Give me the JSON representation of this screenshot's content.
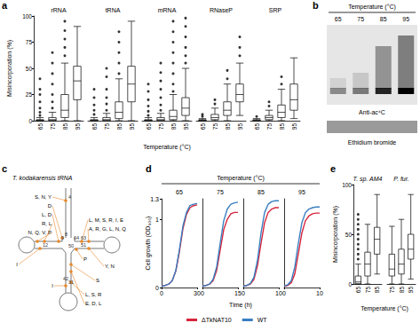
{
  "chart_data": [
    {
      "label": "a",
      "type": "boxplot",
      "y_label": "Misincorporation (%)",
      "x_label": "Temperature (°C)",
      "ylim": [
        0,
        100
      ],
      "yticks": [
        0,
        25,
        50,
        75,
        100
      ],
      "groups": [
        {
          "name": "rRNA",
          "categories": [
            "65",
            "75",
            "85",
            "95"
          ],
          "boxes": [
            [
              0,
              0,
              0,
              1,
              3
            ],
            [
              0,
              0,
              1,
              3,
              8
            ],
            [
              0,
              3,
              10,
              25,
              55
            ],
            [
              0,
              20,
              38,
              52,
              90
            ]
          ],
          "outliers": [
            [
              5,
              8,
              12,
              18,
              25,
              30,
              40
            ],
            [
              12,
              18,
              25,
              35,
              45,
              55,
              65
            ],
            [
              62,
              70,
              78,
              86,
              95
            ],
            []
          ]
        },
        {
          "name": "tRNA",
          "categories": [
            "65",
            "75",
            "85",
            "95"
          ],
          "boxes": [
            [
              0,
              0,
              0,
              1,
              3
            ],
            [
              0,
              0,
              1,
              3,
              7
            ],
            [
              0,
              2,
              8,
              18,
              40
            ],
            [
              0,
              18,
              35,
              52,
              95
            ]
          ],
          "outliers": [
            [
              6,
              10,
              15,
              22,
              30
            ],
            [
              10,
              16,
              22,
              30,
              42,
              50
            ],
            [
              45,
              55,
              65,
              75,
              85
            ],
            []
          ]
        },
        {
          "name": "mRNA",
          "categories": [
            "65",
            "75",
            "85",
            "95"
          ],
          "boxes": [
            [
              0,
              0,
              0,
              1,
              3
            ],
            [
              0,
              0,
              1,
              3,
              7
            ],
            [
              0,
              1,
              4,
              10,
              25
            ],
            [
              0,
              5,
              12,
              22,
              50
            ]
          ],
          "outliers": [
            [
              5,
              9,
              14,
              20,
              28,
              35
            ],
            [
              10,
              15,
              22,
              30,
              38,
              46,
              55
            ],
            [
              28,
              35,
              45,
              55,
              65,
              75,
              85,
              95
            ],
            [
              55,
              62,
              70,
              80,
              90,
              98
            ]
          ]
        },
        {
          "name": "RNaseP",
          "categories": [
            "65",
            "75",
            "85",
            "95"
          ],
          "boxes": [
            [
              0,
              0,
              0,
              1,
              2
            ],
            [
              0,
              1,
              3,
              6,
              12
            ],
            [
              0,
              5,
              10,
              18,
              35
            ],
            [
              5,
              18,
              25,
              35,
              55
            ]
          ],
          "outliers": [
            [
              4,
              6
            ],
            [
              16,
              20
            ],
            [
              40,
              48
            ],
            [
              62,
              70,
              80
            ]
          ]
        },
        {
          "name": "SRP",
          "categories": [
            "65",
            "75",
            "85",
            "95"
          ],
          "boxes": [
            [
              0,
              0,
              0,
              1,
              2
            ],
            [
              0,
              1,
              3,
              5,
              10
            ],
            [
              0,
              3,
              8,
              15,
              30
            ],
            [
              2,
              10,
              20,
              35,
              60
            ]
          ],
          "outliers": [
            [
              4
            ],
            [
              14,
              18
            ],
            [
              35,
              42
            ],
            []
          ]
        }
      ]
    },
    {
      "label": "d",
      "type": "line",
      "title": "Temperature (°C)",
      "y_label": "Cell growth (OD₆₀₀)",
      "x_label": "Time (h)",
      "ylim": [
        0,
        1.3
      ],
      "yticks": [
        0,
        1
      ],
      "legend": "bottom",
      "panels": [
        {
          "name": "65",
          "xlim": [
            0,
            30
          ],
          "xticks": [
            0,
            30
          ],
          "x": [
            0,
            3,
            6,
            9,
            12,
            15,
            18,
            21,
            24,
            27,
            30
          ],
          "series": [
            {
              "name": "ΔTkNAT10",
              "color": "#d7263d",
              "values": [
                0.02,
                0.03,
                0.05,
                0.1,
                0.24,
                0.52,
                0.86,
                1.07,
                1.17,
                1.2,
                1.21
              ]
            },
            {
              "name": "WT",
              "color": "#3a7fc1",
              "values": [
                0.02,
                0.03,
                0.05,
                0.1,
                0.25,
                0.55,
                0.9,
                1.1,
                1.2,
                1.22,
                1.23
              ]
            }
          ]
        },
        {
          "name": "75",
          "xlim": [
            0,
            15
          ],
          "xticks": [
            0,
            15
          ],
          "x": [
            0,
            1.5,
            3,
            4.5,
            6,
            7.5,
            9,
            10.5,
            12,
            13.5,
            15
          ],
          "series": [
            {
              "name": "ΔTkNAT10",
              "color": "#d7263d",
              "values": [
                0.02,
                0.03,
                0.05,
                0.1,
                0.25,
                0.55,
                0.85,
                1.0,
                1.08,
                1.1,
                1.1
              ]
            },
            {
              "name": "WT",
              "color": "#3a7fc1",
              "values": [
                0.02,
                0.03,
                0.05,
                0.12,
                0.3,
                0.65,
                0.98,
                1.15,
                1.22,
                1.24,
                1.25
              ]
            }
          ]
        },
        {
          "name": "85",
          "xlim": [
            0,
            10
          ],
          "xticks": [
            0,
            10
          ],
          "x": [
            0,
            1,
            2,
            3,
            4,
            5,
            6,
            7,
            8,
            9,
            10
          ],
          "series": [
            {
              "name": "ΔTkNAT10",
              "color": "#d7263d",
              "values": [
                0.02,
                0.03,
                0.05,
                0.12,
                0.32,
                0.65,
                0.95,
                1.1,
                1.15,
                1.17,
                1.17
              ]
            },
            {
              "name": "WT",
              "color": "#3a7fc1",
              "values": [
                0.02,
                0.03,
                0.06,
                0.15,
                0.4,
                0.8,
                1.1,
                1.22,
                1.26,
                1.27,
                1.27
              ]
            }
          ]
        },
        {
          "name": "95",
          "xlim": [
            0,
            10
          ],
          "xticks": [
            0,
            10
          ],
          "x": [
            0,
            1,
            2,
            3,
            4,
            5,
            6,
            7,
            8,
            9,
            10
          ],
          "series": [
            {
              "name": "ΔTkNAT10",
              "color": "#d7263d",
              "values": [
                0.02,
                0.03,
                0.07,
                0.2,
                0.5,
                0.8,
                0.98,
                1.05,
                1.08,
                1.09,
                1.09
              ]
            },
            {
              "name": "WT",
              "color": "#3a7fc1",
              "values": [
                0.02,
                0.04,
                0.1,
                0.3,
                0.65,
                0.95,
                1.1,
                1.15,
                1.17,
                1.18,
                1.18
              ]
            }
          ]
        }
      ]
    },
    {
      "label": "e",
      "type": "boxplot",
      "y_label": "Misincorporation (%)",
      "x_label": "Temperature (°C)",
      "ylim": [
        0,
        100
      ],
      "yticks": [
        0,
        50,
        100
      ],
      "groups": [
        {
          "name": "T. sp. AM4",
          "categories": [
            "65",
            "75",
            "85"
          ],
          "boxes": [
            [
              0,
              0,
              2,
              8,
              20
            ],
            [
              0,
              8,
              20,
              32,
              60
            ],
            [
              10,
              30,
              45,
              57,
              90
            ]
          ],
          "outliers": [
            [
              25,
              30,
              35,
              40,
              45,
              50,
              55,
              60,
              65,
              70
            ],
            [],
            []
          ]
        },
        {
          "name": "P. fur.",
          "categories": [
            "75",
            "85",
            "95"
          ],
          "boxes": [
            [
              0,
              8,
              15,
              30,
              58
            ],
            [
              0,
              10,
              20,
              35,
              65
            ],
            [
              5,
              25,
              35,
              50,
              90
            ]
          ],
          "outliers": [
            [],
            [],
            []
          ]
        }
      ]
    }
  ],
  "gel": {
    "label": "b",
    "title": "Temperature (°C)",
    "lanes": [
      "65",
      "75",
      "85",
      "95"
    ],
    "signal": [
      0.2,
      0.3,
      0.8,
      1.0
    ],
    "antibody": "Anti-ac⁴C",
    "stain": "Ethidium bromide"
  },
  "diagram": {
    "label": "c",
    "title": "T. kodakarensis tRNA",
    "sites": [
      {
        "label": "S, N, Y",
        "position": 4
      },
      {
        "label": "D",
        "position": 8
      },
      {
        "label": "L, D",
        "position": 9
      },
      {
        "label": "R, L"
      },
      {
        "label": "N, Q, V, P"
      },
      {
        "label": "I",
        "position": 12
      },
      {
        "label": "I",
        "position": 31
      },
      {
        "label": "L, S, R",
        "position": 42
      },
      {
        "label": "E, D, L"
      },
      {
        "label": "P",
        "position": 50
      },
      {
        "label": "Y, N",
        "position": 51
      },
      {
        "label": "S"
      },
      {
        "label": "A, R, G, L, N, Q",
        "position": 63
      },
      {
        "label": "L, M, S, R, I, E",
        "position": 64
      }
    ]
  }
}
